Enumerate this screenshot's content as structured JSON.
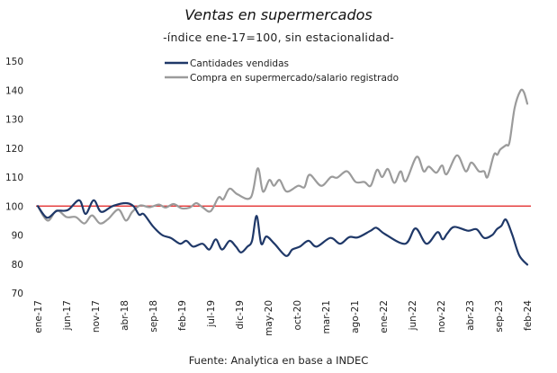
{
  "chart_data": {
    "type": "line",
    "title": "Ventas en supermercados",
    "subtitle": "-índice ene-17=100, sin estacionalidad-",
    "source": "Fuente: Analytica en base a INDEC",
    "xlabel": "",
    "ylabel": "",
    "ylim": [
      70,
      150
    ],
    "yticks": [
      150,
      140,
      130,
      120,
      110,
      100,
      90,
      80,
      70
    ],
    "x_range": [
      "ene-17",
      "feb-24"
    ],
    "x_tick_labels": [
      "ene-17",
      "jun-17",
      "nov-17",
      "abr-18",
      "sep-18",
      "feb-19",
      "jul-19",
      "dic-19",
      "may-20",
      "oct-20",
      "mar-21",
      "ago-21",
      "ene-22",
      "jun-22",
      "nov-22",
      "abr-23",
      "sep-23",
      "feb-24"
    ],
    "x_tick_step_months": 5,
    "reference_line": {
      "value": 100,
      "color": "#e01b1b"
    },
    "legend_position": "top-center",
    "grid": false,
    "series": [
      {
        "name": "Cantidades vendidas",
        "color": "#1f3868",
        "keypoints_month_value": [
          [
            0,
            100
          ],
          [
            1.6,
            96
          ],
          [
            3.3,
            98.3
          ],
          [
            5.2,
            98.6
          ],
          [
            7.2,
            102
          ],
          [
            8.3,
            97.3
          ],
          [
            9.7,
            102
          ],
          [
            11,
            98
          ],
          [
            13,
            100
          ],
          [
            15.3,
            101
          ],
          [
            16.6,
            100
          ],
          [
            17.6,
            97
          ],
          [
            18.4,
            97.2
          ],
          [
            20,
            93
          ],
          [
            21.6,
            90
          ],
          [
            23.1,
            89
          ],
          [
            24.7,
            87
          ],
          [
            25.8,
            88
          ],
          [
            27,
            86
          ],
          [
            28.6,
            87
          ],
          [
            29.8,
            85
          ],
          [
            30.9,
            88.5
          ],
          [
            32,
            85
          ],
          [
            33.3,
            88
          ],
          [
            34.4,
            86
          ],
          [
            35.3,
            84
          ],
          [
            36.4,
            86
          ],
          [
            37.2,
            88
          ],
          [
            38,
            96.6
          ],
          [
            38.8,
            87
          ],
          [
            39.7,
            89.5
          ],
          [
            41.1,
            87
          ],
          [
            43.1,
            82.8
          ],
          [
            44.2,
            85
          ],
          [
            45.5,
            86
          ],
          [
            47,
            88
          ],
          [
            48.4,
            86
          ],
          [
            50.8,
            89
          ],
          [
            52.5,
            87
          ],
          [
            54.1,
            89.3
          ],
          [
            55.6,
            89.2
          ],
          [
            57.8,
            91.5
          ],
          [
            58.8,
            92.5
          ],
          [
            60.3,
            90.3
          ],
          [
            63.8,
            87
          ],
          [
            65.6,
            92.3
          ],
          [
            67.5,
            87
          ],
          [
            69.4,
            91
          ],
          [
            70.3,
            88.5
          ],
          [
            71.1,
            90.5
          ],
          [
            72.3,
            92.8
          ],
          [
            74.7,
            91.5
          ],
          [
            76.2,
            92
          ],
          [
            77.5,
            89
          ],
          [
            78.9,
            90
          ],
          [
            79.7,
            92
          ],
          [
            80.5,
            93.2
          ],
          [
            81.3,
            95.3
          ],
          [
            82.4,
            90
          ],
          [
            83.6,
            83
          ],
          [
            85,
            79.8
          ]
        ]
      },
      {
        "name": "Compra en supermercado/salario registrado",
        "color": "#9b9b9b",
        "keypoints_month_value": [
          [
            0,
            100
          ],
          [
            1.7,
            95
          ],
          [
            3.3,
            98.5
          ],
          [
            5,
            96.2
          ],
          [
            6.6,
            96.2
          ],
          [
            8.1,
            94
          ],
          [
            9.4,
            96.8
          ],
          [
            10.8,
            94
          ],
          [
            12.2,
            95.5
          ],
          [
            14,
            98.8
          ],
          [
            15.3,
            95
          ],
          [
            16.4,
            98
          ],
          [
            17.8,
            100.2
          ],
          [
            19.4,
            99.6
          ],
          [
            21,
            100.5
          ],
          [
            22.2,
            99.5
          ],
          [
            23.6,
            100.7
          ],
          [
            25,
            99.2
          ],
          [
            26.4,
            99.5
          ],
          [
            27.5,
            101
          ],
          [
            28.6,
            99.6
          ],
          [
            30,
            98.2
          ],
          [
            31.4,
            103
          ],
          [
            32.2,
            102.3
          ],
          [
            33.3,
            106
          ],
          [
            34.7,
            104
          ],
          [
            37,
            103
          ],
          [
            38.2,
            113
          ],
          [
            39.1,
            105
          ],
          [
            40.2,
            109
          ],
          [
            41,
            107
          ],
          [
            42,
            109
          ],
          [
            43.2,
            105
          ],
          [
            45.2,
            107
          ],
          [
            46.3,
            106.5
          ],
          [
            47.2,
            110.8
          ],
          [
            49.2,
            107
          ],
          [
            50.9,
            110
          ],
          [
            52,
            109.8
          ],
          [
            53.7,
            112
          ],
          [
            55.2,
            108.3
          ],
          [
            56.7,
            108.3
          ],
          [
            57.8,
            107
          ],
          [
            58.9,
            112.5
          ],
          [
            59.8,
            110
          ],
          [
            60.8,
            112.8
          ],
          [
            61.9,
            108
          ],
          [
            63,
            112
          ],
          [
            63.9,
            108.6
          ],
          [
            65.8,
            117
          ],
          [
            67,
            112
          ],
          [
            67.9,
            113.6
          ],
          [
            69.2,
            111.5
          ],
          [
            70.2,
            114
          ],
          [
            71,
            111
          ],
          [
            72.8,
            117.5
          ],
          [
            74.3,
            112
          ],
          [
            75.3,
            115
          ],
          [
            76.6,
            112
          ],
          [
            77.5,
            112
          ],
          [
            78.1,
            110
          ],
          [
            79.2,
            117.7
          ],
          [
            79.8,
            117.7
          ],
          [
            80.3,
            119.5
          ],
          [
            81.3,
            121
          ],
          [
            81.9,
            122
          ],
          [
            82.8,
            133.8
          ],
          [
            83.8,
            139.7
          ],
          [
            84.4,
            139.3
          ],
          [
            85,
            135.3
          ]
        ]
      }
    ]
  }
}
